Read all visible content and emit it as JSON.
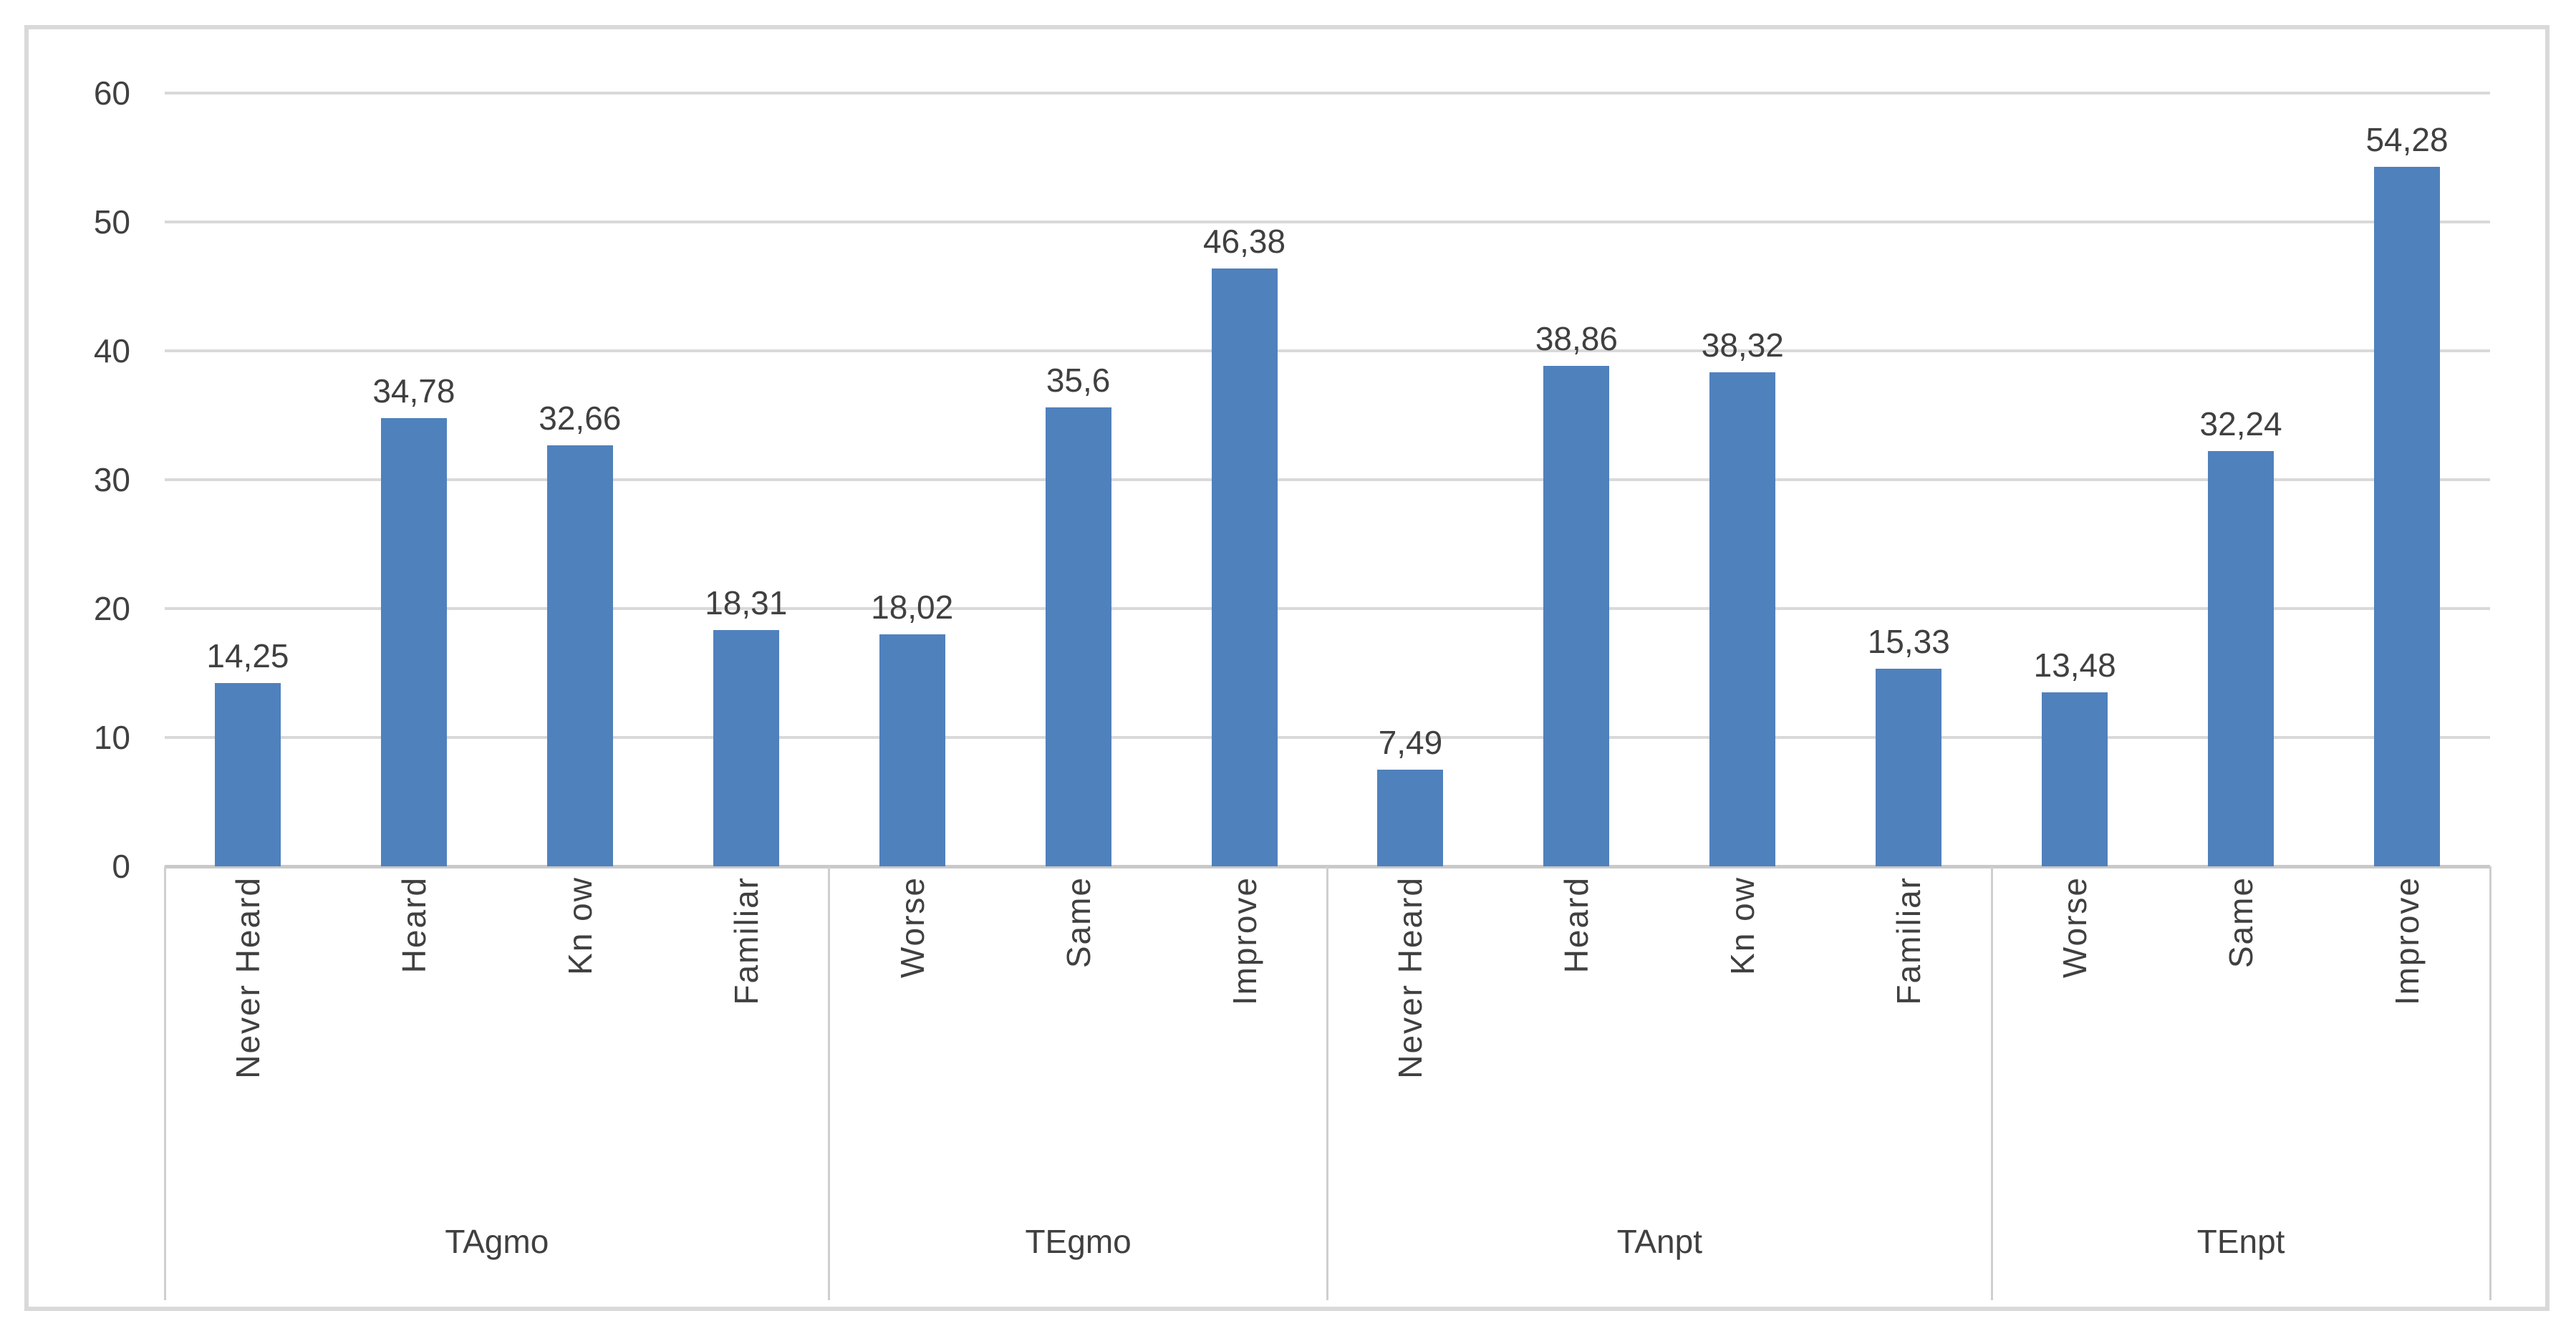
{
  "colors": {
    "bar": "#4f81bd",
    "gridline": "#d9d9d9",
    "axis_line": "#c9c9c9",
    "frame_border": "#d9d9d9",
    "group_divider": "#cfcfcf",
    "text": "#404040",
    "background": "#ffffff"
  },
  "chart_data": {
    "type": "bar",
    "title": "",
    "xlabel": "",
    "ylabel": "",
    "ylim": [
      0,
      60
    ],
    "yticks": [
      "0",
      "10",
      "20",
      "30",
      "40",
      "50",
      "60"
    ],
    "grid": "horizontal",
    "legend": "none",
    "value_label_position": "outside-end",
    "category_label_rotation": "vertical-bottom-to-top",
    "groups": [
      {
        "label": "TAgmo",
        "categories": [
          "Never Heard",
          "Heard",
          "Kn ow",
          "Familiar"
        ],
        "values": [
          14.25,
          34.78,
          32.66,
          18.31
        ],
        "value_labels": [
          "14,25",
          "34,78",
          "32,66",
          "18,31"
        ]
      },
      {
        "label": "TEgmo",
        "categories": [
          "Worse",
          "Same",
          "Improve"
        ],
        "values": [
          18.02,
          35.6,
          46.38
        ],
        "value_labels": [
          "18,02",
          "35,6",
          "46,38"
        ]
      },
      {
        "label": "TAnpt",
        "categories": [
          "Never Heard",
          "Heard",
          "Kn ow",
          "Familiar"
        ],
        "values": [
          7.49,
          38.86,
          38.32,
          15.33
        ],
        "value_labels": [
          "7,49",
          "38,86",
          "38,32",
          "15,33"
        ]
      },
      {
        "label": "TEnpt",
        "categories": [
          "Worse",
          "Same",
          "Improve"
        ],
        "values": [
          13.48,
          32.24,
          54.28
        ],
        "value_labels": [
          "13,48",
          "32,24",
          "54,28"
        ]
      }
    ]
  }
}
